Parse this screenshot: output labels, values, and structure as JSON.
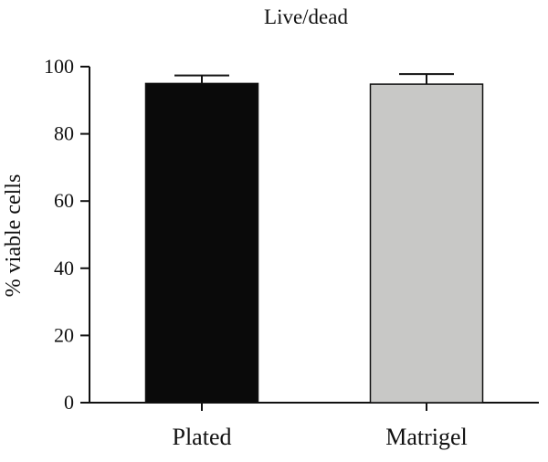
{
  "chart_data": {
    "type": "bar",
    "title": "Live/dead",
    "xlabel": "",
    "ylabel": "% viable cells",
    "ylim": [
      0,
      100
    ],
    "yticks": [
      0,
      20,
      40,
      60,
      80,
      100
    ],
    "categories": [
      "Plated",
      "Matrigel"
    ],
    "values": [
      95,
      94.8
    ],
    "errors": [
      2.4,
      3
    ],
    "colors": [
      "#0a0a0a",
      "#c8c8c6"
    ],
    "grid": false,
    "legend": "none"
  }
}
